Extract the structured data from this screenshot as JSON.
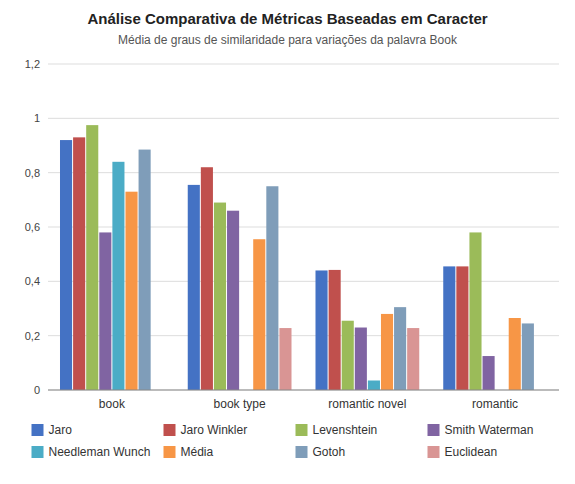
{
  "chart_data": {
    "type": "bar",
    "title": "Análise Comparativa de Métricas Baseadas em Caracter",
    "subtitle": "Média de graus de similaridade para variações da palavra Book",
    "categories": [
      "book",
      "book type",
      "romantic novel",
      "romantic"
    ],
    "series": [
      {
        "name": "Jaro",
        "color": "#4472C4",
        "values": [
          0.92,
          0.755,
          0.44,
          0.455
        ]
      },
      {
        "name": "Jaro Winkler",
        "color": "#C0504D",
        "values": [
          0.93,
          0.82,
          0.442,
          0.455
        ]
      },
      {
        "name": "Levenshtein",
        "color": "#9BBB59",
        "values": [
          0.975,
          0.69,
          0.255,
          0.58
        ]
      },
      {
        "name": "Smith Waterman",
        "color": "#8064A2",
        "values": [
          0.58,
          0.66,
          0.23,
          0.125
        ]
      },
      {
        "name": "Needleman Wunch",
        "color": "#4BACC6",
        "values": [
          0.84,
          0.0,
          0.035,
          0.0
        ]
      },
      {
        "name": "Média",
        "color": "#F79646",
        "values": [
          0.73,
          0.555,
          0.28,
          0.265
        ]
      },
      {
        "name": "Gotoh",
        "color": "#7F9DB9",
        "values": [
          0.885,
          0.75,
          0.305,
          0.245
        ]
      },
      {
        "name": "Euclidean",
        "color": "#D99594",
        "values": [
          0.0,
          0.228,
          0.228,
          0.0
        ]
      }
    ],
    "ylim": [
      0,
      1.2
    ],
    "yticks": [
      0,
      {
        "value": 0.2,
        "label": "0,2"
      },
      {
        "value": 0.4,
        "label": "0,4"
      },
      {
        "value": 0.6,
        "label": "0,6"
      },
      {
        "value": 0.8,
        "label": "0,8"
      },
      1,
      {
        "value": 1.2,
        "label": "1,2"
      }
    ],
    "grid": true,
    "legend": "bottom"
  }
}
